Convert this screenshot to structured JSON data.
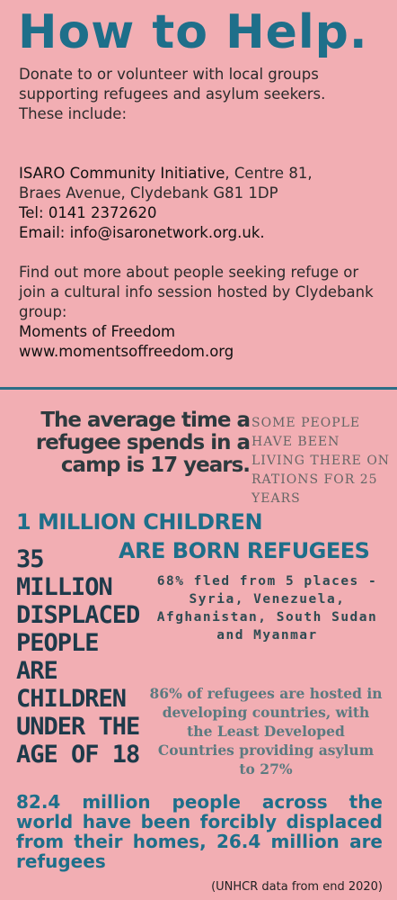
{
  "title": "How to Help.",
  "intro": {
    "donate": "Donate to or volunteer with local groups supporting refugees and asylum seekers.",
    "these_include": "These include:",
    "org_name": "ISARO Community Initiative",
    "org_address_1": ", Centre 81,",
    "org_address_2": "Braes Avenue, Clydebank G81 1DP",
    "tel": "Tel: 0141 2372620",
    "email": " Email: info@isaronetwork.org.uk.",
    "find_out": "Find out more about people seeking refuge or join a cultural info session hosted by Clydebank group:",
    "moments_name": "Moments of Freedom",
    "moments_url": "www.momentsoffreedom.org"
  },
  "stats": {
    "camp": "The average time a refugee spends in a camp is 17 years.",
    "rations": "SOME PEOPLE HAVE BEEN LIVING THERE ON RATIONS FOR 25 YEARS",
    "million_line1": "1 MILLION CHILDREN",
    "million_line2": "ARE BORN REFUGEES",
    "displaced_children": "35 MILLION DISPLACED PEOPLE ARE CHILDREN UNDER THE AGE OF 18",
    "fled": "68% fled from 5 places - Syria, Venezuela, Afghanistan, South Sudan and Myanmar",
    "hosted": "86% of refugees are hosted in developing countries, with the Least Developed Countries providing asylum to 27%",
    "global": "82.4 million people across the world have been forcibly displaced from their homes, 26.4 million are refugees"
  },
  "source": "(UNHCR data from end 2020)",
  "colors": {
    "background": "#f2aeb3",
    "accent": "#1e6f8a",
    "divider": "#2c6e87"
  }
}
